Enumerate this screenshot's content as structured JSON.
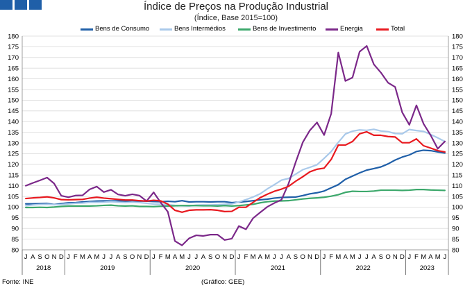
{
  "header": {
    "title": "Índice de Preços na Produção Industrial",
    "subtitle": "(Índice, Base 2015=100)"
  },
  "footer": {
    "source": "Fonte: INE",
    "credit": "(Gráfico: GEE)"
  },
  "colors": {
    "deco": "#1f5fa8",
    "grid": "#d9d9d9"
  },
  "chart_data": {
    "type": "line",
    "x": [
      "2018-07",
      "2018-08",
      "2018-09",
      "2018-10",
      "2018-11",
      "2018-12",
      "2019-01",
      "2019-02",
      "2019-03",
      "2019-04",
      "2019-05",
      "2019-06",
      "2019-07",
      "2019-08",
      "2019-09",
      "2019-10",
      "2019-11",
      "2019-12",
      "2020-01",
      "2020-02",
      "2020-03",
      "2020-04",
      "2020-05",
      "2020-06",
      "2020-07",
      "2020-08",
      "2020-09",
      "2020-10",
      "2020-11",
      "2020-12",
      "2021-01",
      "2021-02",
      "2021-03",
      "2021-04",
      "2021-05",
      "2021-06",
      "2021-07",
      "2021-08",
      "2021-09",
      "2021-10",
      "2021-11",
      "2021-12",
      "2022-01",
      "2022-02",
      "2022-03",
      "2022-04",
      "2022-05",
      "2022-06",
      "2022-07",
      "2022-08",
      "2022-09",
      "2022-10",
      "2022-11",
      "2022-12",
      "2023-01",
      "2023-02",
      "2023-03",
      "2023-04",
      "2023-05",
      "2023-06"
    ],
    "month_labels": [
      "J",
      "A",
      "S",
      "O",
      "N",
      "D",
      "J",
      "F",
      "M",
      "A",
      "M",
      "J",
      "J",
      "A",
      "S",
      "O",
      "N",
      "D",
      "J",
      "F",
      "M",
      "A",
      "M",
      "J",
      "J",
      "A",
      "S",
      "O",
      "N",
      "D",
      "J",
      "F",
      "M",
      "A",
      "M",
      "J",
      "J",
      "A",
      "S",
      "O",
      "N",
      "D",
      "J",
      "F",
      "M",
      "A",
      "M",
      "J",
      "J",
      "A",
      "S",
      "O",
      "N",
      "D",
      "J",
      "F",
      "M",
      "A",
      "M",
      "J"
    ],
    "years": [
      {
        "label": "2018",
        "start": 0,
        "end": 5
      },
      {
        "label": "2019",
        "start": 6,
        "end": 17
      },
      {
        "label": "2020",
        "start": 18,
        "end": 29
      },
      {
        "label": "2021",
        "start": 30,
        "end": 41
      },
      {
        "label": "2022",
        "start": 42,
        "end": 53
      },
      {
        "label": "2023",
        "start": 54,
        "end": 59
      }
    ],
    "ylim": [
      80,
      180
    ],
    "yticks": [
      80,
      85,
      90,
      95,
      100,
      105,
      110,
      115,
      120,
      125,
      130,
      135,
      140,
      145,
      150,
      155,
      160,
      165,
      170,
      175,
      180
    ],
    "grid": "horizontal",
    "legend_position": "top",
    "series": [
      {
        "name": "Bens de Consumo",
        "color": "#1f5fa8",
        "values": [
          101.5,
          101.5,
          101.6,
          101.7,
          101.2,
          101.6,
          102.0,
          102.1,
          102.4,
          102.6,
          102.8,
          102.9,
          102.9,
          102.9,
          102.8,
          102.7,
          102.8,
          102.8,
          102.6,
          102.5,
          102.7,
          102.5,
          103.0,
          102.4,
          102.5,
          102.5,
          102.4,
          102.5,
          102.5,
          102.1,
          102.3,
          102.6,
          103.0,
          103.4,
          103.7,
          104.2,
          104.5,
          104.6,
          104.7,
          105.4,
          106.2,
          106.7,
          107.5,
          109.0,
          110.5,
          113.0,
          114.5,
          116.0,
          117.3,
          118.0,
          118.8,
          120.2,
          122.0,
          123.4,
          124.4,
          126.0,
          126.6,
          126.4,
          125.8,
          125.3
        ]
      },
      {
        "name": "Bens Intermédios",
        "color": "#a9c9ea",
        "values": [
          100.6,
          101.0,
          101.2,
          101.3,
          101.1,
          101.2,
          101.5,
          101.8,
          101.9,
          102.2,
          102.2,
          102.3,
          102.5,
          102.3,
          102.1,
          102.3,
          102.1,
          101.8,
          101.4,
          101.3,
          101.1,
          100.8,
          100.6,
          100.5,
          100.9,
          101.0,
          101.0,
          101.1,
          101.3,
          101.5,
          102.4,
          103.5,
          104.7,
          106.2,
          108.5,
          110.5,
          112.6,
          113.4,
          115.4,
          117.5,
          118.6,
          119.8,
          122.8,
          126.0,
          130.3,
          134.2,
          135.5,
          136.1,
          135.9,
          136.4,
          135.6,
          135.3,
          134.4,
          134.3,
          136.3,
          135.8,
          135.4,
          134.0,
          132.4,
          130.7
        ]
      },
      {
        "name": "Bens de Investimento",
        "color": "#3ca86b",
        "values": [
          99.8,
          99.8,
          99.9,
          99.8,
          100.0,
          100.3,
          100.5,
          100.5,
          100.5,
          100.5,
          100.6,
          100.8,
          100.9,
          100.6,
          100.5,
          100.6,
          100.3,
          100.3,
          100.2,
          100.4,
          100.5,
          100.6,
          100.7,
          100.7,
          100.7,
          100.6,
          100.6,
          100.5,
          100.7,
          100.5,
          100.7,
          101.0,
          101.3,
          102.0,
          102.5,
          102.8,
          102.9,
          103.0,
          103.4,
          103.8,
          104.1,
          104.3,
          104.6,
          105.1,
          105.8,
          106.9,
          107.4,
          107.3,
          107.3,
          107.5,
          107.9,
          107.9,
          107.9,
          107.8,
          107.9,
          108.2,
          108.2,
          108.0,
          107.9,
          107.8
        ]
      },
      {
        "name": "Energia",
        "color": "#7b2889",
        "values": [
          110.0,
          111.3,
          112.5,
          113.8,
          111.0,
          105.3,
          104.6,
          105.4,
          105.5,
          108.3,
          109.6,
          107.0,
          108.1,
          105.9,
          105.3,
          106.0,
          105.4,
          102.8,
          106.9,
          102.1,
          97.8,
          84.1,
          82.1,
          85.4,
          86.8,
          86.5,
          87.1,
          87.1,
          84.6,
          85.2,
          91.1,
          89.6,
          94.8,
          97.5,
          100.1,
          101.9,
          103.4,
          111.0,
          121.0,
          130.3,
          135.9,
          139.6,
          133.7,
          143.7,
          172.3,
          159.0,
          160.6,
          172.7,
          175.4,
          166.8,
          162.9,
          158.2,
          156.2,
          144.3,
          138.5,
          147.6,
          139.0,
          133.6,
          127.3,
          130.7
        ]
      },
      {
        "name": "Total",
        "color": "#e8191f",
        "values": [
          104.0,
          104.3,
          104.5,
          104.8,
          104.3,
          103.5,
          103.4,
          103.5,
          103.6,
          104.2,
          104.6,
          104.2,
          103.9,
          103.6,
          103.3,
          103.3,
          103.0,
          102.8,
          103.2,
          102.9,
          101.4,
          98.5,
          97.6,
          98.5,
          98.7,
          98.7,
          98.8,
          98.5,
          97.9,
          98.0,
          99.9,
          99.9,
          102.2,
          104.4,
          106.0,
          107.4,
          108.4,
          109.7,
          112.1,
          114.2,
          116.5,
          117.7,
          118.2,
          122.3,
          129.0,
          129.0,
          130.7,
          134.3,
          135.2,
          133.6,
          133.6,
          133.0,
          132.8,
          130.1,
          130.1,
          131.9,
          128.7,
          127.6,
          126.4,
          125.8
        ]
      }
    ]
  }
}
